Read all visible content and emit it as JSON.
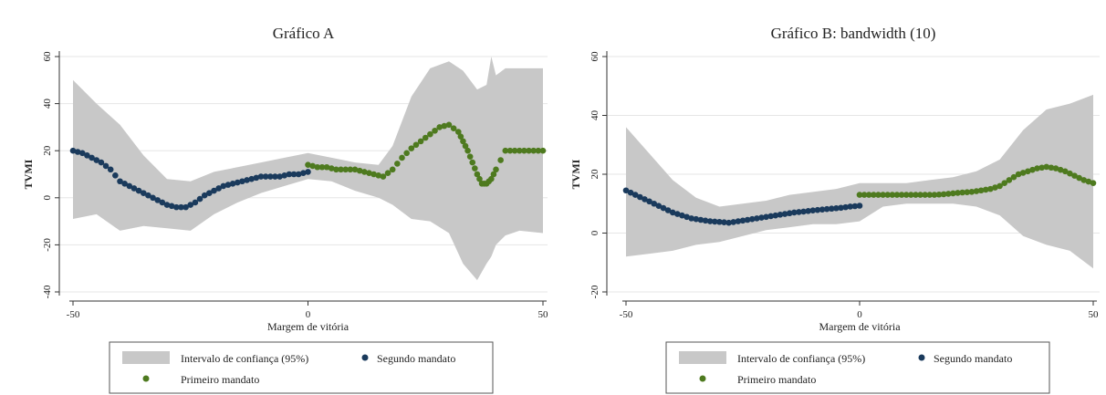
{
  "chart_data": [
    {
      "type": "scatter",
      "title": "Gráfico A",
      "xlabel": "Margem de vitória",
      "ylabel": "TVMI",
      "xlim": [
        -50,
        50
      ],
      "ylim": [
        -40,
        60
      ],
      "xticks": [
        "-50",
        "0",
        "50"
      ],
      "yticks": [
        "-40",
        "-20",
        "0",
        "20",
        "40",
        "60"
      ],
      "grid": true,
      "legend": {
        "placement": "bottom",
        "entries": [
          "Intervalo de confiança (95%)",
          "Segundo mandato",
          "Primeiro mandato"
        ]
      },
      "colors": {
        "band": "#c8c8c8",
        "segundo": "#1a3a5c",
        "primeiro": "#4e7a1f"
      },
      "series": [
        {
          "name": "Intervalo de confiança (95%)",
          "kind": "band",
          "x": [
            -50,
            -45,
            -40,
            -35,
            -30,
            -25,
            -20,
            -15,
            -10,
            -5,
            0,
            5,
            10,
            15,
            18,
            22,
            26,
            30,
            33,
            36,
            38,
            39,
            40,
            42,
            45,
            50
          ],
          "lower": [
            -9,
            -7,
            -14,
            -12,
            -13,
            -14,
            -7,
            -2,
            2,
            5,
            8,
            7,
            3,
            0,
            -3,
            -9,
            -10,
            -15,
            -28,
            -35,
            -28,
            -25,
            -20,
            -16,
            -14,
            -15
          ],
          "upper": [
            50,
            40,
            31,
            18,
            8,
            7,
            11,
            13,
            15,
            17,
            19,
            17,
            15,
            14,
            22,
            43,
            55,
            58,
            54,
            46,
            48,
            60,
            52,
            55,
            55,
            55
          ]
        },
        {
          "name": "Segundo mandato",
          "kind": "points",
          "x": [
            -50,
            -48,
            -46,
            -44,
            -42,
            -40,
            -38,
            -36,
            -34,
            -32,
            -30,
            -28,
            -26,
            -24,
            -22,
            -20,
            -18,
            -16,
            -14,
            -12,
            -10,
            -8,
            -6,
            -4,
            -2,
            0
          ],
          "y": [
            20,
            19,
            17,
            15,
            12,
            7,
            5,
            3,
            1,
            -1,
            -3,
            -4,
            -4,
            -2,
            1,
            3,
            5,
            6,
            7,
            8,
            9,
            9,
            9,
            10,
            10,
            11
          ]
        },
        {
          "name": "Primeiro mandato",
          "kind": "points",
          "x": [
            0,
            2,
            4,
            6,
            8,
            10,
            12,
            14,
            16,
            18,
            20,
            22,
            24,
            26,
            28,
            30,
            32,
            33,
            34,
            35,
            36,
            37,
            38,
            39,
            40,
            42,
            44,
            46,
            48,
            50
          ],
          "y": [
            14,
            13,
            13,
            12,
            12,
            12,
            11,
            10,
            9,
            12,
            17,
            21,
            24,
            27,
            30,
            31,
            28,
            24,
            20,
            15,
            10,
            6,
            6,
            8,
            12,
            20,
            20,
            20,
            20,
            20
          ]
        }
      ]
    },
    {
      "type": "scatter",
      "title": "Gráfico B: bandwidth (10)",
      "xlabel": "Margem de vitória",
      "ylabel": "TVMI",
      "xlim": [
        -50,
        50
      ],
      "ylim": [
        -20,
        60
      ],
      "xticks": [
        "-50",
        "0",
        "50"
      ],
      "yticks": [
        "-20",
        "0",
        "20",
        "40",
        "60"
      ],
      "grid": true,
      "legend": {
        "placement": "bottom",
        "entries": [
          "Intervalo de confiança (95%)",
          "Segundo mandato",
          "Primeiro mandato"
        ]
      },
      "colors": {
        "band": "#c8c8c8",
        "segundo": "#1a3a5c",
        "primeiro": "#4e7a1f"
      },
      "series": [
        {
          "name": "Intervalo de confiança (95%)",
          "kind": "band",
          "x": [
            -50,
            -45,
            -40,
            -35,
            -30,
            -25,
            -20,
            -15,
            -10,
            -5,
            0,
            5,
            10,
            15,
            20,
            25,
            30,
            35,
            40,
            45,
            50
          ],
          "lower": [
            -8,
            -7,
            -6,
            -4,
            -3,
            -1,
            1,
            2,
            3,
            3,
            4,
            9,
            10,
            10,
            10,
            9,
            6,
            -1,
            -4,
            -6,
            -12
          ],
          "upper": [
            36,
            27,
            18,
            12,
            9,
            10,
            11,
            13,
            14,
            15,
            17,
            17,
            17,
            18,
            19,
            21,
            25,
            35,
            42,
            44,
            47
          ]
        },
        {
          "name": "Segundo mandato",
          "kind": "points",
          "x": [
            -50,
            -48,
            -46,
            -44,
            -42,
            -40,
            -38,
            -36,
            -34,
            -32,
            -30,
            -28,
            -26,
            -24,
            -22,
            -20,
            -18,
            -16,
            -14,
            -12,
            -10,
            -8,
            -6,
            -4,
            -2,
            0
          ],
          "y": [
            14.5,
            13,
            11.5,
            10,
            8.5,
            7,
            6,
            5,
            4.5,
            4,
            3.8,
            3.5,
            4,
            4.5,
            5,
            5.5,
            6,
            6.5,
            7,
            7.3,
            7.7,
            8,
            8.3,
            8.6,
            9,
            9.3
          ]
        },
        {
          "name": "Primeiro mandato",
          "kind": "points",
          "x": [
            0,
            2,
            4,
            6,
            8,
            10,
            12,
            14,
            16,
            18,
            20,
            22,
            24,
            26,
            28,
            30,
            32,
            34,
            36,
            38,
            40,
            42,
            44,
            46,
            48,
            50
          ],
          "y": [
            13,
            13,
            13,
            13,
            13,
            13,
            13,
            13,
            13,
            13.2,
            13.5,
            13.8,
            14,
            14.5,
            15,
            16,
            18,
            20,
            21,
            22,
            22.5,
            22,
            21,
            19.5,
            18,
            17
          ]
        }
      ]
    }
  ]
}
